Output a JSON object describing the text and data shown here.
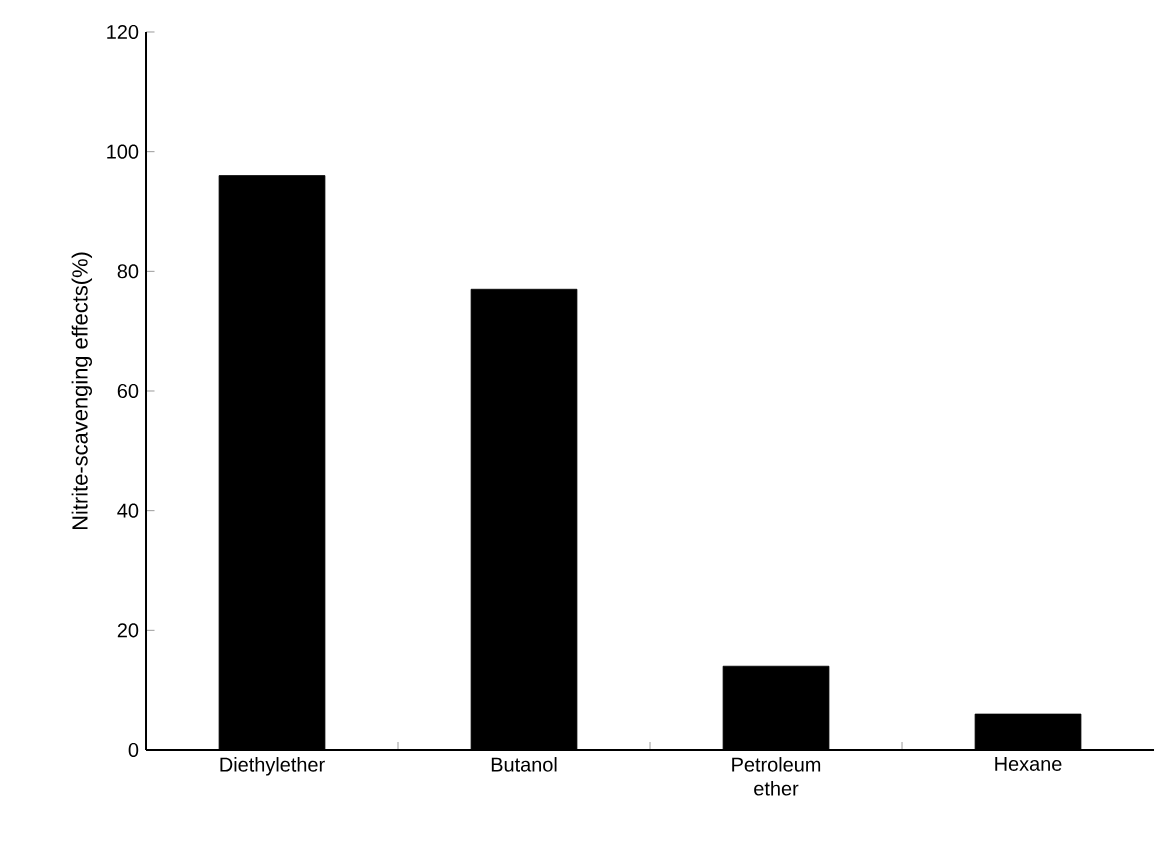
{
  "chart_data": {
    "type": "bar",
    "ylabel": "Nitrite-scavenging effects(%)",
    "categories": [
      "Diethylether",
      "Butanol",
      "Petroleum ether",
      "Hexane"
    ],
    "values": [
      96,
      77,
      14,
      6
    ],
    "color": "#000000",
    "ylim": [
      0,
      120
    ],
    "yticks": [
      0,
      20,
      40,
      60,
      80,
      100,
      120
    ],
    "grid": false
  }
}
